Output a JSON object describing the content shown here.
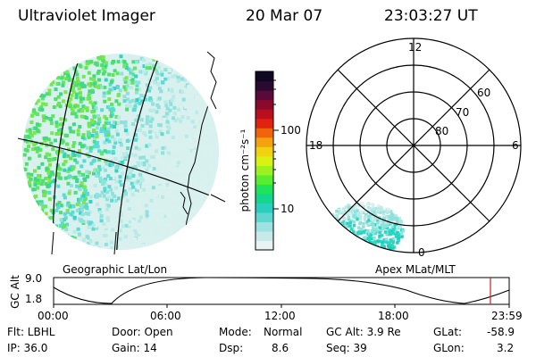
{
  "header": {
    "title": "Ultraviolet Imager",
    "date": "20 Mar 07",
    "time": "23:03:27 UT"
  },
  "colorbar": {
    "unit_label": "photon cm⁻²s⁻¹",
    "ticks": [
      "100",
      "10"
    ],
    "scale": "log",
    "colors": [
      "#e8f2f2",
      "#c9e8ea",
      "#9fe0e0",
      "#5fd6d0",
      "#2bcfc0",
      "#14d68e",
      "#1fe35a",
      "#56ee2e",
      "#9af21f",
      "#d9f214",
      "#f2d20f",
      "#f5a211",
      "#f0650c",
      "#e0220e",
      "#b80e1e",
      "#8a0a2e",
      "#5a0a3a",
      "#2a0a33",
      "#100822"
    ]
  },
  "geo_panel": {
    "label": "Geographic Lat/Lon"
  },
  "polar_panel": {
    "label": "Apex MLat/MLT",
    "mlt_labels": [
      "12",
      "18",
      "6",
      "0"
    ],
    "lat_labels": [
      "60",
      "70",
      "80"
    ]
  },
  "altitude_plot": {
    "ylabel": "GC Alt",
    "yticks": [
      "9.0",
      "1.8"
    ],
    "xticks": [
      "00:00",
      "06:00",
      "12:00",
      "18:00",
      "23:59"
    ],
    "marker_color": "#cc2222"
  },
  "info": {
    "flt": "Flt: LBHL",
    "door": "Door: Open",
    "mode_label": "Mode:",
    "mode_value": "Normal",
    "gc_alt": "GC Alt: 3.9 Re",
    "glat_label": "GLat:",
    "glat_value": "-58.9",
    "ip": "IP: 36.0",
    "gain": "Gain: 14",
    "dsp_label": "Dsp:",
    "dsp_value": "8.6",
    "seq": "Seq: 39",
    "glon_label": "GLon:",
    "glon_value": "3.2"
  }
}
